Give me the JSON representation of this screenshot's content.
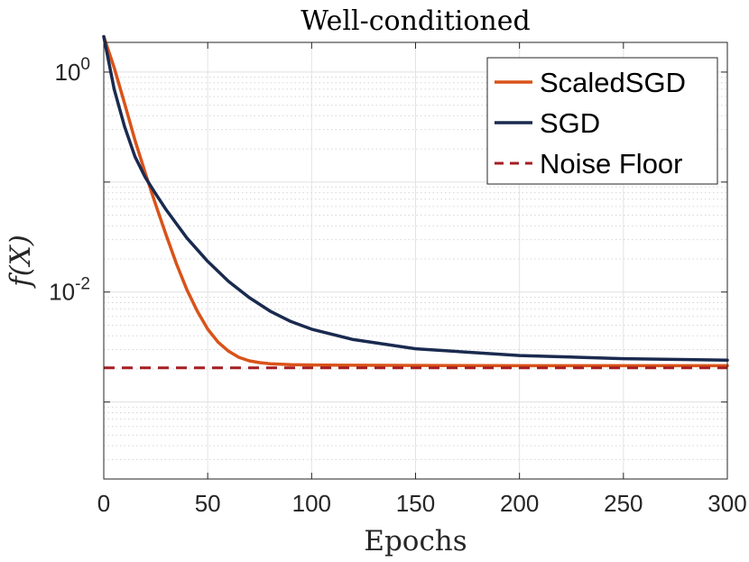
{
  "chart_data": {
    "type": "line",
    "title": "Well-conditioned",
    "xlabel": "Epochs",
    "ylabel": "f(X)",
    "xlim": [
      0,
      300
    ],
    "ylim_log10": [
      -3.7,
      0.27
    ],
    "yscale": "log",
    "grid": true,
    "legend_position": "top-right",
    "x_ticks": [
      0,
      50,
      100,
      150,
      200,
      250,
      300
    ],
    "x_tick_labels": [
      "0",
      "50",
      "100",
      "150",
      "200",
      "250",
      "300"
    ],
    "y_ticks": [
      {
        "base": "10",
        "exp": "0",
        "value": 1
      },
      {
        "base": "10",
        "exp": "-2",
        "value": 0.01
      }
    ],
    "series": [
      {
        "name": "ScaledSGD",
        "color": "#d95319",
        "style": "solid",
        "x": [
          0,
          5,
          10,
          15,
          20,
          25,
          30,
          35,
          40,
          45,
          50,
          55,
          60,
          65,
          70,
          75,
          80,
          90,
          100,
          120,
          150,
          200,
          250,
          300
        ],
        "y": [
          2.1,
          1.1,
          0.52,
          0.24,
          0.12,
          0.062,
          0.033,
          0.018,
          0.0105,
          0.0067,
          0.0046,
          0.0035,
          0.0029,
          0.00255,
          0.00237,
          0.00228,
          0.00223,
          0.00219,
          0.00217,
          0.00216,
          0.00215,
          0.00214,
          0.00214,
          0.00214
        ]
      },
      {
        "name": "SGD",
        "color": "#1a2a4f",
        "style": "solid",
        "x": [
          0,
          5,
          10,
          15,
          20,
          25,
          30,
          40,
          50,
          60,
          70,
          80,
          90,
          100,
          120,
          150,
          200,
          250,
          300
        ],
        "y": [
          2.1,
          0.7,
          0.32,
          0.17,
          0.11,
          0.078,
          0.056,
          0.031,
          0.019,
          0.0125,
          0.0089,
          0.0067,
          0.0054,
          0.0046,
          0.0037,
          0.00305,
          0.00265,
          0.00248,
          0.0024
        ]
      },
      {
        "name": "Noise Floor",
        "color": "#a51e22",
        "style": "dashed",
        "x": [
          0,
          300
        ],
        "y": [
          0.00205,
          0.00205
        ]
      }
    ]
  }
}
